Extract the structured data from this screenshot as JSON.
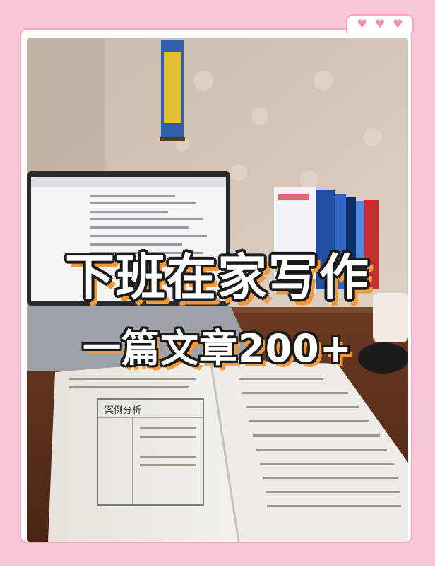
{
  "decoration": {
    "hearts": [
      "heart-icon",
      "heart-icon",
      "heart-icon"
    ]
  },
  "overlay": {
    "title_line1": "下班在家写作",
    "title_line2": "一篇文章200+"
  },
  "colors": {
    "background": "#f7c9d6",
    "frame_border": "#f2a9bf",
    "heart": "#ef8fb0",
    "title_fill": "#ffffff",
    "title_outline": "#1a1a1a",
    "title_shadow": "#f29a3b"
  },
  "photo": {
    "book_page_heading": "案例分析"
  }
}
